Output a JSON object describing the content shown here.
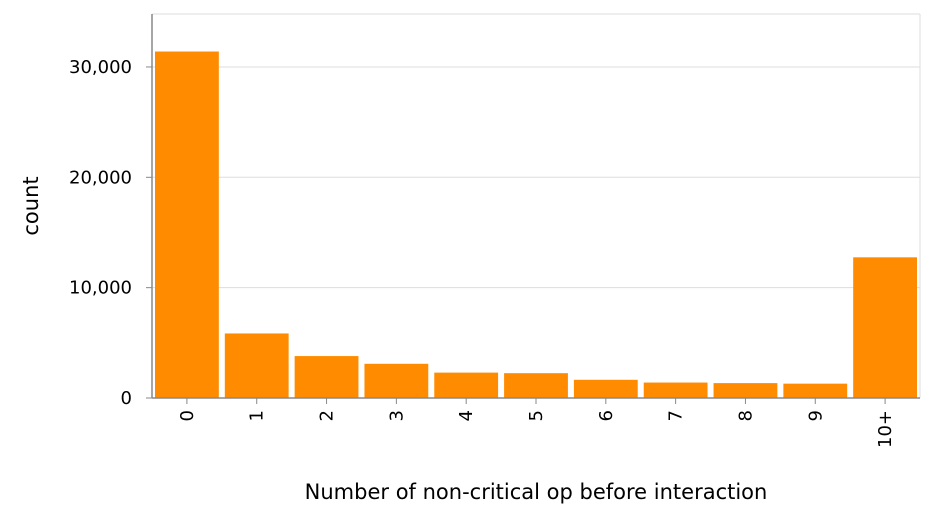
{
  "chart_data": {
    "type": "bar",
    "categories": [
      "0",
      "1",
      "2",
      "3",
      "4",
      "5",
      "6",
      "7",
      "8",
      "9",
      "10+"
    ],
    "values": [
      31400,
      5850,
      3800,
      3100,
      2300,
      2250,
      1650,
      1400,
      1350,
      1300,
      12750
    ],
    "xlabel": "Number of non-critical op before interaction",
    "ylabel": "count",
    "ylim": [
      0,
      34800
    ],
    "yticks": [
      0,
      10000,
      20000,
      30000
    ],
    "ytick_labels": [
      "0",
      "10,000",
      "20,000",
      "30,000"
    ],
    "bar_color": "#ff8c00",
    "grid": true
  }
}
